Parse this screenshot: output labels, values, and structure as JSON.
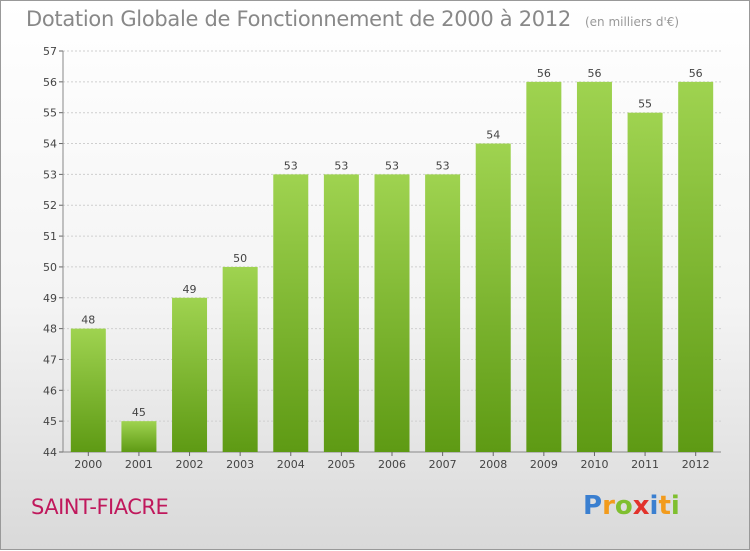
{
  "chart_data": {
    "type": "bar",
    "title": "Dotation Globale de Fonctionnement de 2000 à 2012",
    "subtitle": "(en milliers d'€)",
    "categories": [
      "2000",
      "2001",
      "2002",
      "2003",
      "2004",
      "2005",
      "2006",
      "2007",
      "2008",
      "2009",
      "2010",
      "2011",
      "2012"
    ],
    "values": [
      48,
      45,
      49,
      50,
      53,
      53,
      53,
      53,
      54,
      56,
      56,
      55,
      56
    ],
    "ylim": [
      44,
      57
    ],
    "yticks": [
      44,
      45,
      46,
      47,
      48,
      49,
      50,
      51,
      52,
      53,
      54,
      55,
      56,
      57
    ],
    "grid": true,
    "bar_color": "#7fbf2f"
  },
  "commune": "SAINT-FIACRE",
  "logo": {
    "letters": [
      "P",
      "r",
      "o",
      "x",
      "i",
      "t",
      "i"
    ],
    "colors": [
      "#3a7fd0",
      "#f29b1c",
      "#7fbf2f",
      "#e2322b",
      "#3a7fd0",
      "#f29b1c",
      "#7fbf2f"
    ]
  }
}
